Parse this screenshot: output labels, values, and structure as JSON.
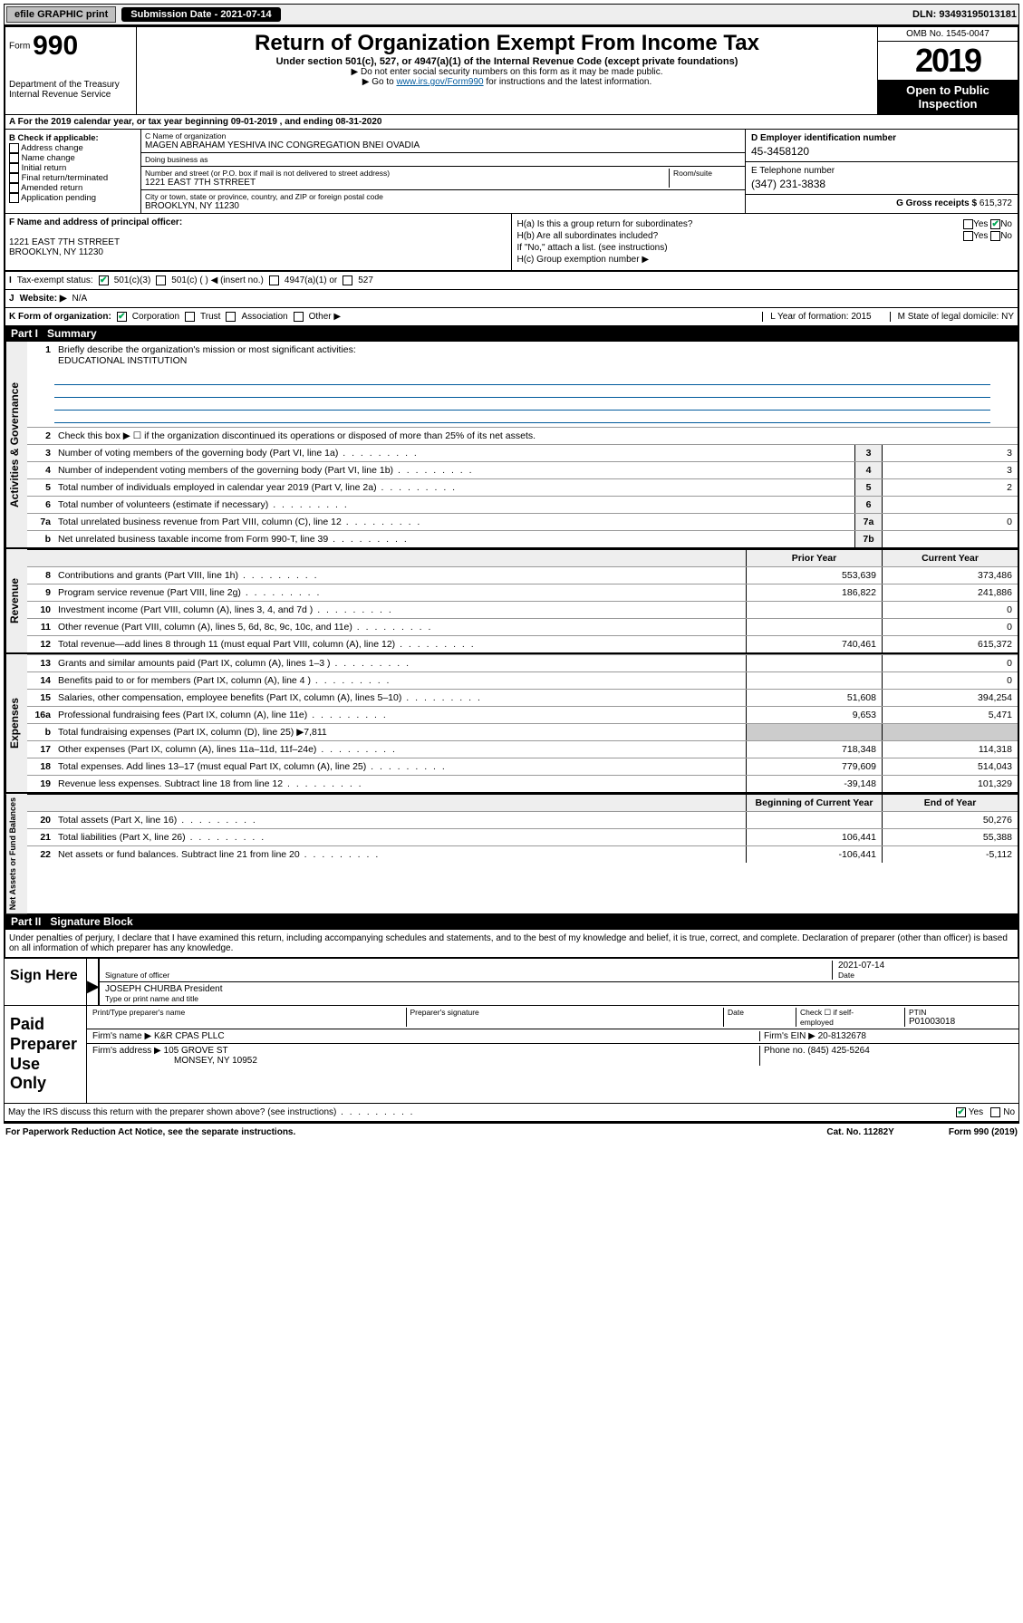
{
  "topbar": {
    "efile": "efile GRAPHIC print",
    "submission_label": "Submission Date - 2021-07-14",
    "dln": "DLN: 93493195013181"
  },
  "header": {
    "form_label": "Form",
    "form_num": "990",
    "dept": "Department of the Treasury\nInternal Revenue Service",
    "title": "Return of Organization Exempt From Income Tax",
    "sub1": "Under section 501(c), 527, or 4947(a)(1) of the Internal Revenue Code (except private foundations)",
    "sub2": "▶ Do not enter social security numbers on this form as it may be made public.",
    "sub3_pre": "▶ Go to ",
    "sub3_link": "www.irs.gov/Form990",
    "sub3_post": " for instructions and the latest information.",
    "omb": "OMB No. 1545-0047",
    "year": "2019",
    "open1": "Open to Public",
    "open2": "Inspection"
  },
  "rowA": "A For the 2019 calendar year, or tax year beginning 09-01-2019    , and ending 08-31-2020",
  "boxB": {
    "title": "B Check if applicable:",
    "opts": [
      "Address change",
      "Name change",
      "Initial return",
      "Final return/terminated",
      "Amended return",
      "Application pending"
    ]
  },
  "boxC": {
    "name_lbl": "C Name of organization",
    "name": "MAGEN ABRAHAM YESHIVA INC CONGREGATION BNEI OVADIA",
    "dba_lbl": "Doing business as",
    "dba": "",
    "addr_lbl": "Number and street (or P.O. box if mail is not delivered to street address)",
    "room_lbl": "Room/suite",
    "addr": "1221 EAST 7TH STRREET",
    "city_lbl": "City or town, state or province, country, and ZIP or foreign postal code",
    "city": "BROOKLYN, NY  11230"
  },
  "boxD": {
    "lbl": "D Employer identification number",
    "val": "45-3458120"
  },
  "boxE": {
    "lbl": "E Telephone number",
    "val": "(347) 231-3838"
  },
  "boxG": {
    "lbl": "G Gross receipts $",
    "val": "615,372"
  },
  "boxF": {
    "lbl": "F Name and address of principal officer:",
    "addr1": "1221 EAST 7TH STRREET",
    "addr2": "BROOKLYN, NY  11230"
  },
  "boxH": {
    "a": "H(a) Is this a group return for subordinates?",
    "b": "H(b) Are all subordinates included?",
    "note": "If \"No,\" attach a list. (see instructions)",
    "c": "H(c) Group exemption number ▶"
  },
  "rowI": {
    "lbl": "Tax-exempt status:",
    "opts": [
      "501(c)(3)",
      "501(c) (  ) ◀ (insert no.)",
      "4947(a)(1) or",
      "527"
    ]
  },
  "rowJ": {
    "lbl": "Website: ▶",
    "val": "N/A"
  },
  "rowK": {
    "lbl": "K Form of organization:",
    "opts": [
      "Corporation",
      "Trust",
      "Association",
      "Other ▶"
    ],
    "L": "L Year of formation: 2015",
    "M": "M State of legal domicile: NY"
  },
  "part1": {
    "num": "Part I",
    "title": "Summary"
  },
  "governance": {
    "label": "Activities & Governance",
    "l1": "Briefly describe the organization's mission or most significant activities:",
    "l1v": "EDUCATIONAL INSTITUTION",
    "l2": "Check this box ▶ ☐ if the organization discontinued its operations or disposed of more than 25% of its net assets.",
    "rows": [
      {
        "n": "3",
        "d": "Number of voting members of the governing body (Part VI, line 1a)",
        "box": "3",
        "v": "3"
      },
      {
        "n": "4",
        "d": "Number of independent voting members of the governing body (Part VI, line 1b)",
        "box": "4",
        "v": "3"
      },
      {
        "n": "5",
        "d": "Total number of individuals employed in calendar year 2019 (Part V, line 2a)",
        "box": "5",
        "v": "2"
      },
      {
        "n": "6",
        "d": "Total number of volunteers (estimate if necessary)",
        "box": "6",
        "v": ""
      },
      {
        "n": "7a",
        "d": "Total unrelated business revenue from Part VIII, column (C), line 12",
        "box": "7a",
        "v": "0"
      },
      {
        "n": "b",
        "d": "Net unrelated business taxable income from Form 990-T, line 39",
        "box": "7b",
        "v": ""
      }
    ]
  },
  "revenue": {
    "label": "Revenue",
    "hdr1": "Prior Year",
    "hdr2": "Current Year",
    "rows": [
      {
        "n": "8",
        "d": "Contributions and grants (Part VIII, line 1h)",
        "p": "553,639",
        "c": "373,486"
      },
      {
        "n": "9",
        "d": "Program service revenue (Part VIII, line 2g)",
        "p": "186,822",
        "c": "241,886"
      },
      {
        "n": "10",
        "d": "Investment income (Part VIII, column (A), lines 3, 4, and 7d )",
        "p": "",
        "c": "0"
      },
      {
        "n": "11",
        "d": "Other revenue (Part VIII, column (A), lines 5, 6d, 8c, 9c, 10c, and 11e)",
        "p": "",
        "c": "0"
      },
      {
        "n": "12",
        "d": "Total revenue—add lines 8 through 11 (must equal Part VIII, column (A), line 12)",
        "p": "740,461",
        "c": "615,372"
      }
    ]
  },
  "expenses": {
    "label": "Expenses",
    "rows": [
      {
        "n": "13",
        "d": "Grants and similar amounts paid (Part IX, column (A), lines 1–3 )",
        "p": "",
        "c": "0"
      },
      {
        "n": "14",
        "d": "Benefits paid to or for members (Part IX, column (A), line 4 )",
        "p": "",
        "c": "0"
      },
      {
        "n": "15",
        "d": "Salaries, other compensation, employee benefits (Part IX, column (A), lines 5–10)",
        "p": "51,608",
        "c": "394,254"
      },
      {
        "n": "16a",
        "d": "Professional fundraising fees (Part IX, column (A), line 11e)",
        "p": "9,653",
        "c": "5,471"
      },
      {
        "n": "b",
        "d": "Total fundraising expenses (Part IX, column (D), line 25) ▶7,811",
        "p": "",
        "c": "",
        "noval": true
      },
      {
        "n": "17",
        "d": "Other expenses (Part IX, column (A), lines 11a–11d, 11f–24e)",
        "p": "718,348",
        "c": "114,318"
      },
      {
        "n": "18",
        "d": "Total expenses. Add lines 13–17 (must equal Part IX, column (A), line 25)",
        "p": "779,609",
        "c": "514,043"
      },
      {
        "n": "19",
        "d": "Revenue less expenses. Subtract line 18 from line 12",
        "p": "-39,148",
        "c": "101,329"
      }
    ]
  },
  "netassets": {
    "label": "Net Assets or Fund Balances",
    "hdr1": "Beginning of Current Year",
    "hdr2": "End of Year",
    "rows": [
      {
        "n": "20",
        "d": "Total assets (Part X, line 16)",
        "p": "",
        "c": "50,276"
      },
      {
        "n": "21",
        "d": "Total liabilities (Part X, line 26)",
        "p": "106,441",
        "c": "55,388"
      },
      {
        "n": "22",
        "d": "Net assets or fund balances. Subtract line 21 from line 20",
        "p": "-106,441",
        "c": "-5,112"
      }
    ]
  },
  "part2": {
    "num": "Part II",
    "title": "Signature Block"
  },
  "perjury": "Under penalties of perjury, I declare that I have examined this return, including accompanying schedules and statements, and to the best of my knowledge and belief, it is true, correct, and complete. Declaration of preparer (other than officer) is based on all information of which preparer has any knowledge.",
  "sign": {
    "here": "Sign Here",
    "sig_lbl": "Signature of officer",
    "date_lbl": "Date",
    "date": "2021-07-14",
    "name": "JOSEPH CHURBA  President",
    "name_lbl": "Type or print name and title"
  },
  "paid": {
    "title": "Paid Preparer Use Only",
    "h1": "Print/Type preparer's name",
    "h2": "Preparer's signature",
    "h3": "Date",
    "h4_a": "Check ☐ if self-employed",
    "h4_b": "PTIN",
    "ptin": "P01003018",
    "firm_lbl": "Firm's name   ▶",
    "firm": "K&R CPAS PLLC",
    "ein_lbl": "Firm's EIN ▶",
    "ein": "20-8132678",
    "addr_lbl": "Firm's address ▶",
    "addr1": "105 GROVE ST",
    "addr2": "MONSEY, NY  10952",
    "phone_lbl": "Phone no.",
    "phone": "(845) 425-5264"
  },
  "discuss": "May the IRS discuss this return with the preparer shown above? (see instructions)",
  "footer": {
    "l": "For Paperwork Reduction Act Notice, see the separate instructions.",
    "m": "Cat. No. 11282Y",
    "r": "Form 990 (2019)"
  }
}
